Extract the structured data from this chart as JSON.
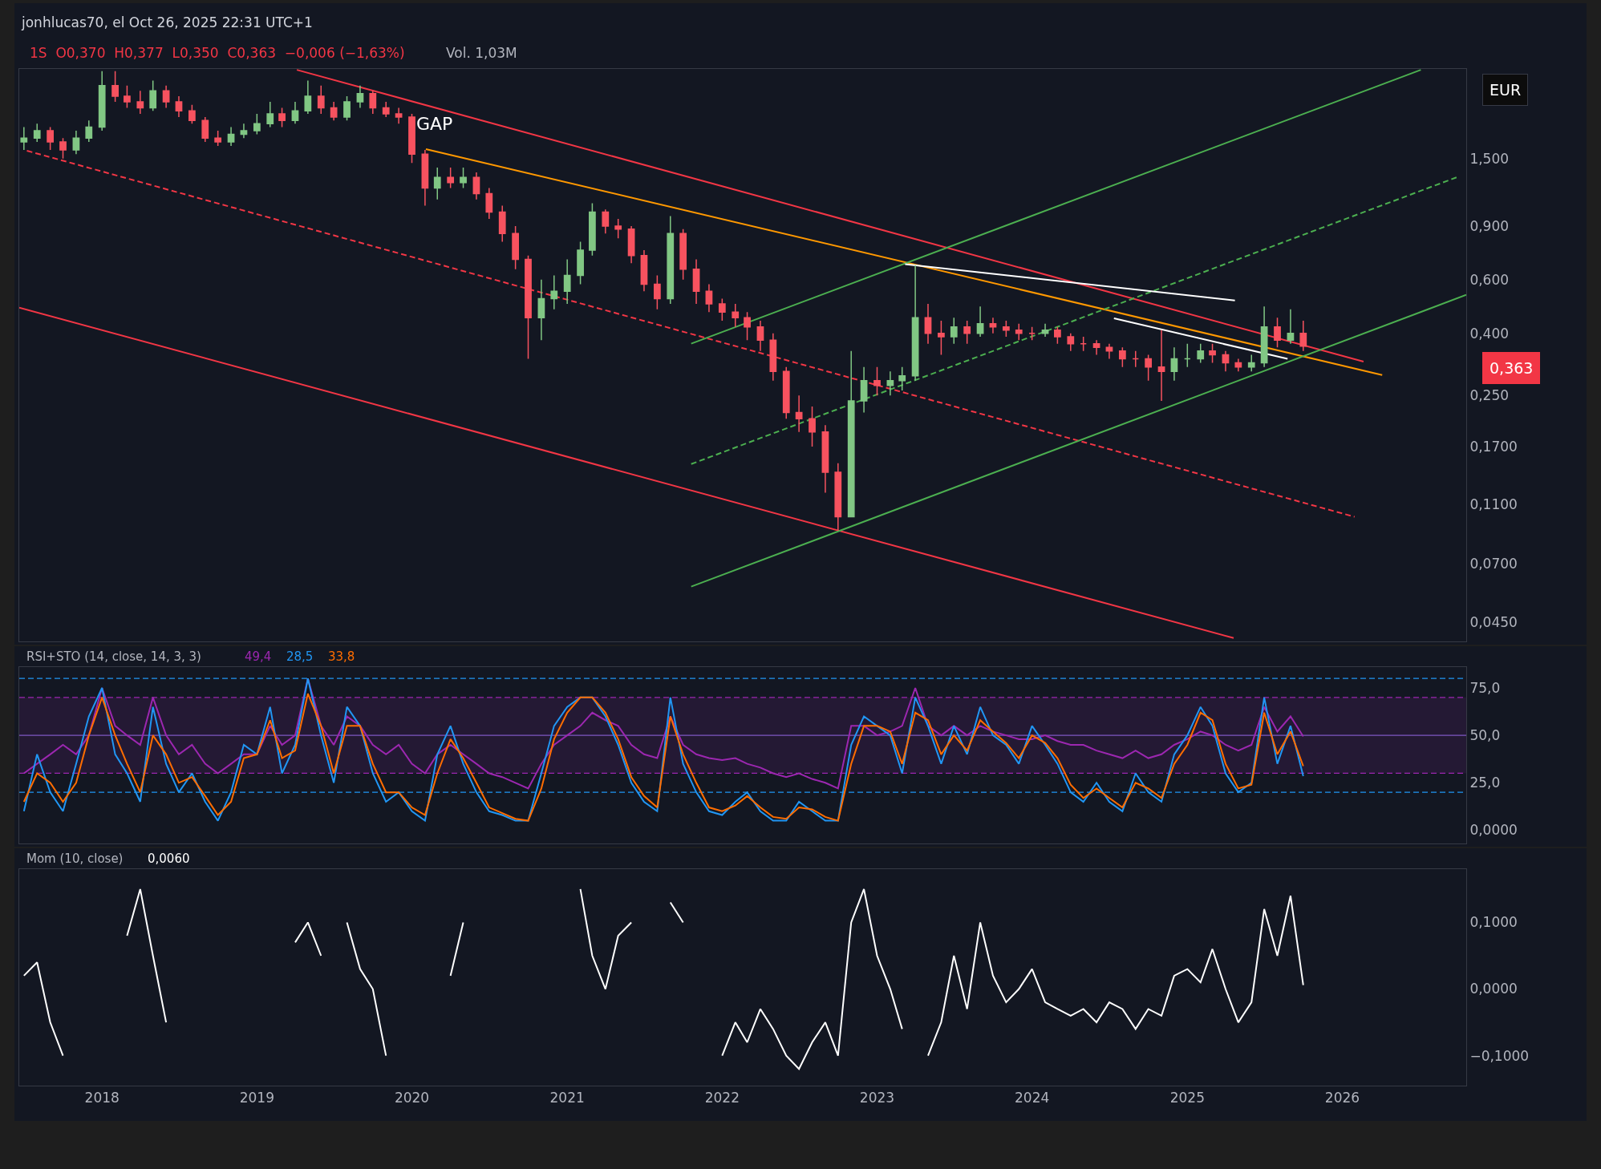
{
  "chart_data": [
    {
      "type": "candlestick",
      "title": "jonhlucas70, el Oct 26, 2025 22:31 UTC+1",
      "subtitle": "1S  O0,370  H0,377  L0,350  C0,363  −0,006 (−1,63%)",
      "annotations": [
        "Vol. 1,03M",
        "EUR",
        "0,363",
        {
          "text": "GAP",
          "x": "2020-01",
          "y": 1.75
        }
      ],
      "x": [
        "2017-07",
        "2017-08",
        "2017-09",
        "2017-10",
        "2017-11",
        "2017-12",
        "2018-01",
        "2018-02",
        "2018-03",
        "2018-04",
        "2018-05",
        "2018-06",
        "2018-07",
        "2018-08",
        "2018-09",
        "2018-10",
        "2018-11",
        "2018-12",
        "2019-01",
        "2019-02",
        "2019-03",
        "2019-04",
        "2019-05",
        "2019-06",
        "2019-07",
        "2019-08",
        "2019-09",
        "2019-10",
        "2019-11",
        "2019-12",
        "2020-01",
        "2020-02",
        "2020-03",
        "2020-04",
        "2020-05",
        "2020-06",
        "2020-07",
        "2020-08",
        "2020-09",
        "2020-10",
        "2020-11",
        "2020-12",
        "2021-01",
        "2021-02",
        "2021-03",
        "2021-04",
        "2021-05",
        "2021-06",
        "2021-07",
        "2021-08",
        "2021-09",
        "2021-10",
        "2021-11",
        "2021-12",
        "2022-01",
        "2022-02",
        "2022-03",
        "2022-04",
        "2022-05",
        "2022-06",
        "2022-07",
        "2022-08",
        "2022-09",
        "2022-10",
        "2022-11",
        "2022-12",
        "2023-01",
        "2023-02",
        "2023-03",
        "2023-04",
        "2023-05",
        "2023-06",
        "2023-07",
        "2023-08",
        "2023-09",
        "2023-10",
        "2023-11",
        "2023-12",
        "2024-01",
        "2024-02",
        "2024-03",
        "2024-04",
        "2024-05",
        "2024-06",
        "2024-07",
        "2024-08",
        "2024-09",
        "2024-10",
        "2024-11",
        "2024-12",
        "2025-01",
        "2025-02",
        "2025-03",
        "2025-04",
        "2025-05",
        "2025-06",
        "2025-07",
        "2025-08",
        "2025-09",
        "2025-10"
      ],
      "ohlc": [
        [
          1.7,
          1.9,
          1.6,
          1.75
        ],
        [
          1.75,
          1.95,
          1.7,
          1.85
        ],
        [
          1.85,
          1.9,
          1.6,
          1.7
        ],
        [
          1.7,
          1.75,
          1.5,
          1.6
        ],
        [
          1.6,
          1.85,
          1.55,
          1.75
        ],
        [
          1.75,
          2.0,
          1.7,
          1.9
        ],
        [
          1.9,
          2.9,
          1.85,
          2.6
        ],
        [
          2.6,
          2.9,
          2.3,
          2.4
        ],
        [
          2.4,
          2.6,
          2.2,
          2.3
        ],
        [
          2.3,
          2.5,
          2.1,
          2.2
        ],
        [
          2.2,
          2.7,
          2.15,
          2.5
        ],
        [
          2.5,
          2.6,
          2.2,
          2.3
        ],
        [
          2.3,
          2.4,
          2.05,
          2.15
        ],
        [
          2.15,
          2.25,
          1.95,
          2.0
        ],
        [
          2.0,
          2.05,
          1.7,
          1.75
        ],
        [
          1.75,
          1.85,
          1.65,
          1.7
        ],
        [
          1.7,
          1.9,
          1.65,
          1.8
        ],
        [
          1.8,
          1.95,
          1.75,
          1.85
        ],
        [
          1.85,
          2.1,
          1.8,
          1.95
        ],
        [
          1.95,
          2.3,
          1.9,
          2.1
        ],
        [
          2.1,
          2.2,
          1.9,
          2.0
        ],
        [
          2.0,
          2.3,
          1.95,
          2.15
        ],
        [
          2.15,
          2.7,
          2.1,
          2.4
        ],
        [
          2.4,
          2.6,
          2.1,
          2.2
        ],
        [
          2.2,
          2.3,
          2.0,
          2.05
        ],
        [
          2.05,
          2.4,
          2.0,
          2.3
        ],
        [
          2.3,
          2.6,
          2.2,
          2.45
        ],
        [
          2.45,
          2.5,
          2.1,
          2.2
        ],
        [
          2.2,
          2.3,
          2.05,
          2.1
        ],
        [
          2.1,
          2.2,
          1.95,
          2.05
        ],
        [
          2.05,
          2.1,
          1.45,
          1.55
        ],
        [
          1.55,
          1.6,
          1.05,
          1.2
        ],
        [
          1.2,
          1.4,
          1.1,
          1.3
        ],
        [
          1.3,
          1.4,
          1.2,
          1.25
        ],
        [
          1.25,
          1.4,
          1.2,
          1.3
        ],
        [
          1.3,
          1.35,
          1.1,
          1.15
        ],
        [
          1.15,
          1.2,
          0.95,
          1.0
        ],
        [
          1.0,
          1.05,
          0.8,
          0.85
        ],
        [
          0.85,
          0.9,
          0.65,
          0.7
        ],
        [
          0.7,
          0.72,
          0.33,
          0.45
        ],
        [
          0.45,
          0.6,
          0.38,
          0.52
        ],
        [
          0.52,
          0.62,
          0.48,
          0.55
        ],
        [
          0.55,
          0.7,
          0.5,
          0.62
        ],
        [
          0.62,
          0.8,
          0.58,
          0.75
        ],
        [
          0.75,
          1.07,
          0.72,
          1.0
        ],
        [
          1.0,
          1.02,
          0.85,
          0.9
        ],
        [
          0.9,
          0.95,
          0.82,
          0.88
        ],
        [
          0.88,
          0.9,
          0.68,
          0.72
        ],
        [
          0.72,
          0.75,
          0.55,
          0.58
        ],
        [
          0.58,
          0.62,
          0.48,
          0.52
        ],
        [
          0.52,
          0.97,
          0.5,
          0.85
        ],
        [
          0.85,
          0.88,
          0.6,
          0.65
        ],
        [
          0.65,
          0.7,
          0.5,
          0.55
        ],
        [
          0.55,
          0.58,
          0.47,
          0.5
        ],
        [
          0.5,
          0.52,
          0.44,
          0.47
        ],
        [
          0.47,
          0.5,
          0.42,
          0.45
        ],
        [
          0.45,
          0.47,
          0.38,
          0.42
        ],
        [
          0.42,
          0.44,
          0.35,
          0.38
        ],
        [
          0.38,
          0.4,
          0.28,
          0.3
        ],
        [
          0.3,
          0.31,
          0.21,
          0.22
        ],
        [
          0.22,
          0.25,
          0.19,
          0.21
        ],
        [
          0.21,
          0.23,
          0.17,
          0.19
        ],
        [
          0.19,
          0.2,
          0.12,
          0.14
        ],
        [
          0.14,
          0.15,
          0.09,
          0.1
        ],
        [
          0.1,
          0.35,
          0.1,
          0.24
        ],
        [
          0.24,
          0.31,
          0.22,
          0.28
        ],
        [
          0.28,
          0.31,
          0.25,
          0.27
        ],
        [
          0.27,
          0.3,
          0.25,
          0.28
        ],
        [
          0.28,
          0.31,
          0.26,
          0.29
        ],
        [
          0.29,
          0.67,
          0.28,
          0.45
        ],
        [
          0.45,
          0.5,
          0.37,
          0.4
        ],
        [
          0.4,
          0.44,
          0.34,
          0.39
        ],
        [
          0.39,
          0.45,
          0.37,
          0.42
        ],
        [
          0.42,
          0.44,
          0.37,
          0.4
        ],
        [
          0.4,
          0.49,
          0.39,
          0.43
        ],
        [
          0.43,
          0.45,
          0.4,
          0.42
        ],
        [
          0.42,
          0.44,
          0.39,
          0.41
        ],
        [
          0.41,
          0.43,
          0.38,
          0.4
        ],
        [
          0.4,
          0.42,
          0.38,
          0.4
        ],
        [
          0.4,
          0.43,
          0.39,
          0.41
        ],
        [
          0.41,
          0.42,
          0.37,
          0.39
        ],
        [
          0.39,
          0.4,
          0.35,
          0.37
        ],
        [
          0.37,
          0.39,
          0.35,
          0.37
        ],
        [
          0.37,
          0.38,
          0.34,
          0.36
        ],
        [
          0.36,
          0.37,
          0.33,
          0.35
        ],
        [
          0.35,
          0.36,
          0.31,
          0.33
        ],
        [
          0.33,
          0.35,
          0.31,
          0.33
        ],
        [
          0.33,
          0.34,
          0.28,
          0.31
        ],
        [
          0.31,
          0.41,
          0.24,
          0.3
        ],
        [
          0.3,
          0.36,
          0.28,
          0.33
        ],
        [
          0.33,
          0.37,
          0.31,
          0.33
        ],
        [
          0.33,
          0.37,
          0.32,
          0.35
        ],
        [
          0.35,
          0.37,
          0.32,
          0.34
        ],
        [
          0.34,
          0.35,
          0.3,
          0.32
        ],
        [
          0.32,
          0.33,
          0.3,
          0.31
        ],
        [
          0.31,
          0.34,
          0.3,
          0.32
        ],
        [
          0.32,
          0.49,
          0.31,
          0.42
        ],
        [
          0.42,
          0.45,
          0.36,
          0.38
        ],
        [
          0.38,
          0.48,
          0.37,
          0.4
        ],
        [
          0.4,
          0.44,
          0.35,
          0.363
        ]
      ],
      "series": [
        {
          "type": "line",
          "color": "#f23645",
          "x": [
            "2019-04-05",
            "2026-02-20"
          ],
          "values": [
            2.93,
            0.323
          ]
        },
        {
          "type": "line",
          "color": "#f23645",
          "line_style": "dashed",
          "x": [
            "2017-07-08",
            "2026-01-30"
          ],
          "values": [
            1.59,
            0.1
          ]
        },
        {
          "type": "line",
          "color": "#f23645",
          "x": [
            "2017-06-20",
            "2025-04-20"
          ],
          "values": [
            0.486,
            0.04
          ]
        },
        {
          "type": "line",
          "color": "#ff9800",
          "x": [
            "2020-02-03",
            "2026-04-05"
          ],
          "values": [
            1.61,
            0.292
          ]
        },
        {
          "type": "line",
          "color": "#4caf50",
          "x": [
            "2021-10-20",
            "2026-07-05"
          ],
          "values": [
            0.37,
            2.93
          ]
        },
        {
          "type": "line",
          "color": "#4caf50",
          "line_style": "dashed",
          "x": [
            "2021-10-20",
            "2026-09-27"
          ],
          "values": [
            0.149,
            1.3
          ]
        },
        {
          "type": "line",
          "color": "#4caf50",
          "x": [
            "2021-10-20",
            "2026-10-20"
          ],
          "values": [
            0.059,
            0.535
          ]
        },
        {
          "type": "line",
          "color": "#ffffff",
          "x": [
            "2023-03-08",
            "2025-04-23"
          ],
          "values": [
            0.675,
            0.513
          ]
        },
        {
          "type": "line",
          "color": "#ffffff",
          "x": [
            "2024-07-12",
            "2025-08-25"
          ],
          "values": [
            0.448,
            0.33
          ]
        }
      ],
      "log": "y",
      "xlim": [
        "2017-06-20",
        "2026-10-20"
      ],
      "xticks": [
        "2018",
        "2019",
        "2020",
        "2021",
        "2022",
        "2023",
        "2024",
        "2025",
        "2026"
      ],
      "ylim": [
        0.039,
        2.95
      ],
      "yticks": [
        {
          "value": 0.045,
          "label": "0,0450"
        },
        {
          "value": 0.07,
          "label": "0,0700"
        },
        {
          "value": 0.11,
          "label": "0,1100"
        },
        {
          "value": 0.17,
          "label": "0,1700"
        },
        {
          "value": 0.25,
          "label": "0,250"
        },
        {
          "value": 0.4,
          "label": "0,400"
        },
        {
          "value": 0.6,
          "label": "0,600"
        },
        {
          "value": 0.9,
          "label": "0,900"
        },
        {
          "value": 1.5,
          "label": "1,500"
        }
      ],
      "tick_labels": "y"
    },
    {
      "type": "line",
      "title": "RSI+STO (14, close, 14, 3, 3)",
      "annotations": [
        "49,4",
        "28,5",
        "33,8"
      ],
      "x": [
        "2017-07",
        "2017-08",
        "2017-09",
        "2017-10",
        "2017-11",
        "2017-12",
        "2018-01",
        "2018-02",
        "2018-03",
        "2018-04",
        "2018-05",
        "2018-06",
        "2018-07",
        "2018-08",
        "2018-09",
        "2018-10",
        "2018-11",
        "2018-12",
        "2019-01",
        "2019-02",
        "2019-03",
        "2019-04",
        "2019-05",
        "2019-06",
        "2019-07",
        "2019-08",
        "2019-09",
        "2019-10",
        "2019-11",
        "2019-12",
        "2020-01",
        "2020-02",
        "2020-03",
        "2020-04",
        "2020-05",
        "2020-06",
        "2020-07",
        "2020-08",
        "2020-09",
        "2020-10",
        "2020-11",
        "2020-12",
        "2021-01",
        "2021-02",
        "2021-03",
        "2021-04",
        "2021-05",
        "2021-06",
        "2021-07",
        "2021-08",
        "2021-09",
        "2021-10",
        "2021-11",
        "2021-12",
        "2022-01",
        "2022-02",
        "2022-03",
        "2022-04",
        "2022-05",
        "2022-06",
        "2022-07",
        "2022-08",
        "2022-09",
        "2022-10",
        "2022-11",
        "2022-12",
        "2023-01",
        "2023-02",
        "2023-03",
        "2023-04",
        "2023-05",
        "2023-06",
        "2023-07",
        "2023-08",
        "2023-09",
        "2023-10",
        "2023-11",
        "2023-12",
        "2024-01",
        "2024-02",
        "2024-03",
        "2024-04",
        "2024-05",
        "2024-06",
        "2024-07",
        "2024-08",
        "2024-09",
        "2024-10",
        "2024-11",
        "2024-12",
        "2025-01",
        "2025-02",
        "2025-03",
        "2025-04",
        "2025-05",
        "2025-06",
        "2025-07",
        "2025-08",
        "2025-09",
        "2025-10"
      ],
      "series": [
        {
          "color": "#9c27b0",
          "values": [
            30,
            35,
            40,
            45,
            40,
            50,
            75,
            55,
            50,
            45,
            70,
            50,
            40,
            45,
            35,
            30,
            35,
            40,
            40,
            55,
            45,
            50,
            80,
            55,
            45,
            60,
            55,
            45,
            40,
            45,
            35,
            30,
            40,
            45,
            40,
            35,
            30,
            28,
            25,
            22,
            35,
            45,
            50,
            55,
            62,
            58,
            55,
            45,
            40,
            38,
            60,
            45,
            40,
            38,
            37,
            38,
            35,
            33,
            30,
            28,
            30,
            27,
            25,
            22,
            55,
            55,
            50,
            52,
            55,
            75,
            55,
            50,
            55,
            50,
            55,
            52,
            50,
            48,
            48,
            50,
            47,
            45,
            45,
            42,
            40,
            38,
            42,
            38,
            40,
            45,
            48,
            52,
            50,
            45,
            42,
            45,
            65,
            52,
            60,
            49.4
          ]
        },
        {
          "color": "#2196f3",
          "values": [
            10,
            40,
            20,
            10,
            35,
            60,
            75,
            40,
            30,
            15,
            65,
            35,
            20,
            30,
            15,
            5,
            20,
            45,
            40,
            65,
            30,
            45,
            80,
            50,
            25,
            65,
            55,
            30,
            15,
            20,
            10,
            5,
            40,
            55,
            35,
            20,
            10,
            8,
            5,
            5,
            30,
            55,
            65,
            70,
            70,
            60,
            45,
            25,
            15,
            10,
            70,
            35,
            20,
            10,
            8,
            15,
            20,
            10,
            5,
            5,
            15,
            10,
            5,
            5,
            45,
            60,
            55,
            50,
            30,
            70,
            55,
            35,
            55,
            40,
            65,
            50,
            45,
            35,
            55,
            45,
            35,
            20,
            15,
            25,
            15,
            10,
            30,
            20,
            15,
            40,
            50,
            65,
            55,
            30,
            20,
            25,
            70,
            35,
            55,
            28.5
          ]
        },
        {
          "color": "#ff6d00",
          "values": [
            15,
            30,
            25,
            15,
            25,
            50,
            70,
            50,
            35,
            20,
            50,
            40,
            25,
            28,
            18,
            8,
            15,
            38,
            40,
            58,
            38,
            42,
            72,
            55,
            30,
            55,
            55,
            35,
            20,
            20,
            12,
            8,
            30,
            48,
            38,
            25,
            12,
            9,
            6,
            5,
            22,
            48,
            62,
            70,
            70,
            62,
            48,
            28,
            18,
            12,
            60,
            40,
            25,
            12,
            10,
            13,
            18,
            12,
            7,
            6,
            12,
            11,
            7,
            5,
            35,
            55,
            55,
            52,
            35,
            62,
            58,
            40,
            50,
            42,
            58,
            52,
            46,
            38,
            50,
            46,
            38,
            24,
            17,
            22,
            17,
            12,
            25,
            22,
            17,
            35,
            45,
            62,
            58,
            35,
            22,
            24,
            62,
            40,
            52,
            33.8
          ]
        }
      ],
      "ref_lines": [
        {
          "axis": "y",
          "value": 80,
          "color": "#2196f3",
          "line_style": "dashed"
        },
        {
          "axis": "y",
          "value": 70,
          "color": "#9c27b0",
          "line_style": "dashed"
        },
        {
          "axis": "y",
          "value": 50,
          "color": "#7e57c2",
          "line_style": "solid"
        },
        {
          "axis": "y",
          "value": 30,
          "color": "#9c27b0",
          "line_style": "dashed"
        },
        {
          "axis": "y",
          "value": 20,
          "color": "#2196f3",
          "line_style": "dashed"
        }
      ],
      "bands": [
        {
          "axis": "y",
          "from": 30,
          "to": 70,
          "color": "#9c27b0"
        }
      ],
      "xlim": [
        "2017-06-20",
        "2026-10-20"
      ],
      "xticks": [
        "2018",
        "2019",
        "2020",
        "2021",
        "2022",
        "2023",
        "2024",
        "2025",
        "2026"
      ],
      "ylim": [
        -7,
        86
      ],
      "yticks": [
        {
          "value": 0,
          "label": "0,0000"
        },
        {
          "value": 25,
          "label": "25,0"
        },
        {
          "value": 50,
          "label": "50,0"
        },
        {
          "value": 75,
          "label": "75,0"
        }
      ],
      "tick_labels": "y"
    },
    {
      "type": "line",
      "title": "Mom (10, close)",
      "annotations": [
        "0,0060"
      ],
      "x": [
        "2017-07",
        "2017-08",
        "2017-09",
        "2017-10",
        "2017-11",
        "2017-12",
        "2018-01",
        "2018-02",
        "2018-03",
        "2018-04",
        "2018-05",
        "2018-06",
        "2018-07",
        "2018-08",
        "2018-09",
        "2018-10",
        "2018-11",
        "2018-12",
        "2019-01",
        "2019-02",
        "2019-03",
        "2019-04",
        "2019-05",
        "2019-06",
        "2019-07",
        "2019-08",
        "2019-09",
        "2019-10",
        "2019-11",
        "2019-12",
        "2020-01",
        "2020-02",
        "2020-03",
        "2020-04",
        "2020-05",
        "2020-06",
        "2020-07",
        "2020-08",
        "2020-09",
        "2020-10",
        "2020-11",
        "2020-12",
        "2021-01",
        "2021-02",
        "2021-03",
        "2021-04",
        "2021-05",
        "2021-06",
        "2021-07",
        "2021-08",
        "2021-09",
        "2021-10",
        "2021-11",
        "2021-12",
        "2022-01",
        "2022-02",
        "2022-03",
        "2022-04",
        "2022-05",
        "2022-06",
        "2022-07",
        "2022-08",
        "2022-09",
        "2022-10",
        "2022-11",
        "2022-12",
        "2023-01",
        "2023-02",
        "2023-03",
        "2023-04",
        "2023-05",
        "2023-06",
        "2023-07",
        "2023-08",
        "2023-09",
        "2023-10",
        "2023-11",
        "2023-12",
        "2024-01",
        "2024-02",
        "2024-03",
        "2024-04",
        "2024-05",
        "2024-06",
        "2024-07",
        "2024-08",
        "2024-09",
        "2024-10",
        "2024-11",
        "2024-12",
        "2025-01",
        "2025-02",
        "2025-03",
        "2025-04",
        "2025-05",
        "2025-06",
        "2025-07",
        "2025-08",
        "2025-09",
        "2025-10"
      ],
      "series": [
        {
          "color": "#ffffff",
          "values": [
            0.02,
            0.04,
            -0.05,
            -0.1,
            null,
            null,
            null,
            null,
            0.08,
            0.15,
            0.05,
            -0.05,
            null,
            null,
            null,
            null,
            null,
            null,
            null,
            null,
            null,
            0.07,
            0.1,
            0.05,
            null,
            0.1,
            0.03,
            0.0,
            -0.1,
            null,
            null,
            null,
            null,
            0.02,
            0.1,
            null,
            null,
            null,
            null,
            null,
            null,
            null,
            null,
            0.15,
            0.05,
            0.0,
            0.08,
            0.1,
            null,
            null,
            0.13,
            0.1,
            null,
            null,
            -0.1,
            -0.05,
            -0.08,
            -0.03,
            -0.06,
            -0.1,
            -0.12,
            -0.08,
            -0.05,
            -0.1,
            0.1,
            0.15,
            0.05,
            0.0,
            -0.06,
            null,
            -0.1,
            -0.05,
            0.05,
            -0.03,
            0.1,
            0.02,
            -0.02,
            0.0,
            0.03,
            -0.02,
            -0.03,
            -0.04,
            -0.03,
            -0.05,
            -0.02,
            -0.03,
            -0.06,
            -0.03,
            -0.04,
            0.02,
            0.03,
            0.01,
            0.06,
            0.0,
            -0.05,
            -0.02,
            0.12,
            0.05,
            0.14,
            0.006
          ]
        }
      ],
      "xlim": [
        "2017-06-20",
        "2026-10-20"
      ],
      "xticks": [
        "2018",
        "2019",
        "2020",
        "2021",
        "2022",
        "2023",
        "2024",
        "2025",
        "2026"
      ],
      "ylim": [
        -0.145,
        0.18
      ],
      "yticks": [
        {
          "value": -0.1,
          "label": "−0,1000"
        },
        {
          "value": 0,
          "label": "0,0000"
        },
        {
          "value": 0.1,
          "label": "0,1000"
        }
      ]
    }
  ]
}
